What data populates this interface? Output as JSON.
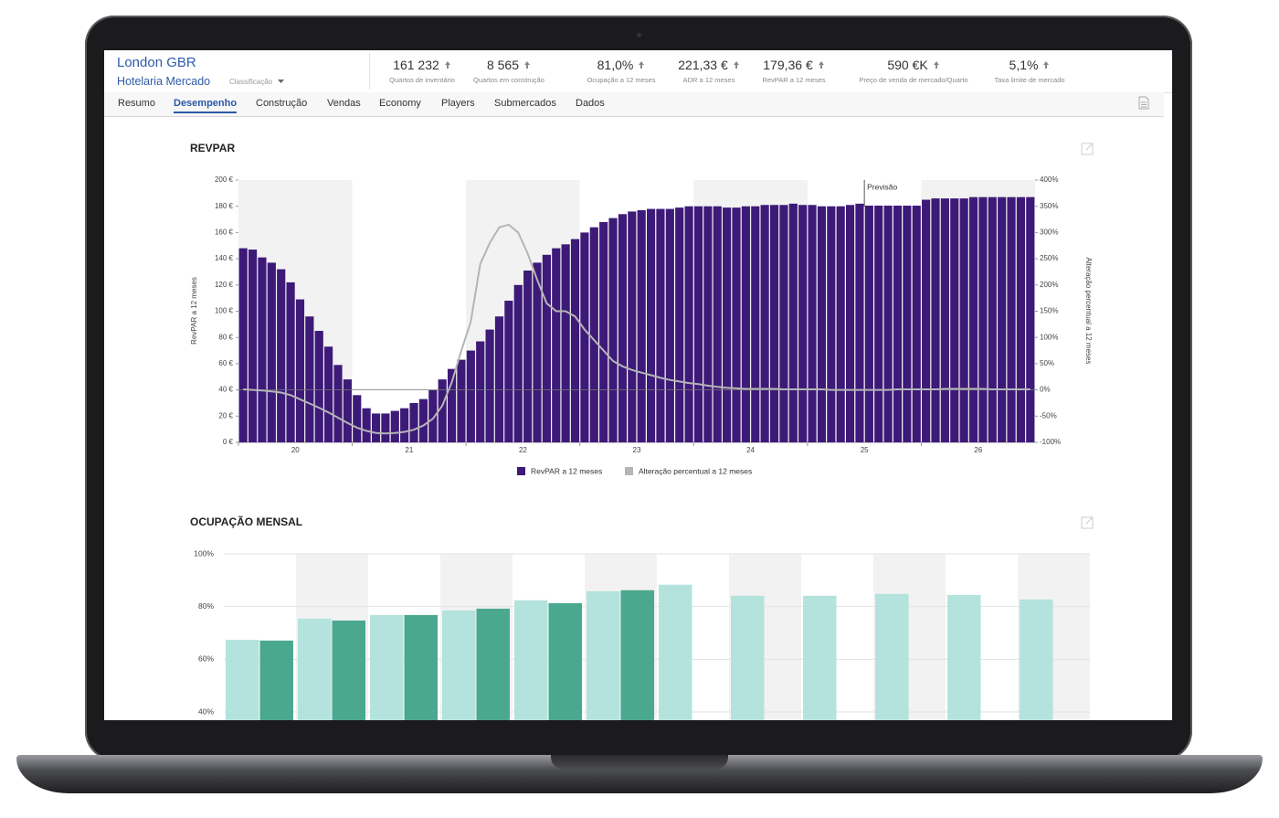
{
  "header": {
    "city": "London GBR",
    "segment": "Hotelaria Mercado",
    "dropdown": "Classificação"
  },
  "metrics": [
    {
      "value": "161 232",
      "label": "Quartos de inventário"
    },
    {
      "value": "8 565",
      "label": "Quartos em construção"
    },
    {
      "value": "81,0%",
      "label": "Ocupação a 12 meses"
    },
    {
      "value": "221,33 €",
      "label": "ADR a 12 meses"
    },
    {
      "value": "179,36 €",
      "label": "RevPAR a 12 meses"
    },
    {
      "value": "590 €K",
      "label": "Preço de venda de mercado/Quarto"
    },
    {
      "value": "5,1%",
      "label": "Taxa limite de mercado"
    }
  ],
  "tabs": [
    "Resumo",
    "Desempenho",
    "Construção",
    "Vendas",
    "Economy",
    "Players",
    "Submercados",
    "Dados"
  ],
  "active_tab": 1,
  "chart_data": [
    {
      "type": "bar",
      "title": "REVPAR",
      "categories": [
        "20",
        null,
        null,
        null,
        null,
        null,
        null,
        null,
        null,
        null,
        null,
        null,
        "21",
        null,
        null,
        null,
        null,
        null,
        null,
        null,
        null,
        null,
        null,
        null,
        "22",
        null,
        null,
        null,
        null,
        null,
        null,
        null,
        null,
        null,
        null,
        null,
        "23",
        null,
        null,
        null,
        null,
        null,
        null,
        null,
        null,
        null,
        null,
        null,
        "24",
        null,
        null,
        null,
        null,
        null,
        null,
        null,
        null,
        null,
        null,
        null,
        "25",
        null,
        null,
        null,
        null,
        null,
        null,
        null,
        null,
        null,
        null,
        null,
        "26",
        null,
        null,
        null,
        null,
        null,
        null,
        null,
        null,
        null,
        null,
        null
      ],
      "series": [
        {
          "name": "RevPAR a 12 meses",
          "type": "bar",
          "color": "#3d1a78",
          "values": [
            148,
            147,
            141,
            137,
            132,
            122,
            109,
            96,
            85,
            73,
            59,
            48,
            36,
            26,
            22,
            22,
            24,
            26,
            30,
            33,
            40,
            48,
            56,
            63,
            70,
            77,
            86,
            96,
            108,
            120,
            131,
            137,
            143,
            148,
            151,
            155,
            160,
            164,
            168,
            171,
            174,
            176,
            177,
            178,
            178,
            178,
            179,
            180,
            180,
            180,
            180,
            179,
            179,
            180,
            180,
            181,
            181,
            181,
            182,
            181,
            181,
            180,
            180,
            180,
            181,
            182,
            182,
            183,
            184,
            184,
            185,
            185,
            185,
            186,
            186,
            186,
            186,
            187,
            187,
            187,
            187,
            187,
            187,
            187
          ]
        },
        {
          "name": "Alteração percentual a 12 meses",
          "type": "line",
          "color": "#b5b5b5",
          "axis": "y2",
          "values": [
            1,
            0,
            -1,
            -3,
            -5,
            -10,
            -18,
            -26,
            -34,
            -43,
            -53,
            -63,
            -72,
            -78,
            -82,
            -83,
            -82,
            -80,
            -76,
            -68,
            -55,
            -30,
            15,
            75,
            130,
            240,
            280,
            310,
            315,
            300,
            260,
            210,
            165,
            150,
            150,
            140,
            115,
            95,
            75,
            55,
            45,
            38,
            33,
            28,
            23,
            19,
            16,
            13,
            11,
            8,
            6,
            4,
            3,
            2,
            2,
            2,
            2,
            1,
            1,
            1,
            1,
            1,
            0,
            0,
            0,
            0,
            0,
            0,
            0,
            1,
            1,
            1,
            1,
            1,
            2,
            2,
            2,
            2,
            2,
            1,
            1,
            1,
            1,
            1
          ]
        }
      ],
      "ylabel": "RevPAR a 12 meses",
      "y2label": "Alteração percentual a 12 meses",
      "ylim": [
        0,
        200
      ],
      "yticks": [
        {
          "value": 0,
          "label": "0 €"
        },
        {
          "value": 20,
          "label": "20 €"
        },
        {
          "value": 40,
          "label": "40 €"
        },
        {
          "value": 60,
          "label": "60 €"
        },
        {
          "value": 80,
          "label": "80 €"
        },
        {
          "value": 100,
          "label": "100 €"
        },
        {
          "value": 120,
          "label": "120 €"
        },
        {
          "value": 140,
          "label": "140 €"
        },
        {
          "value": 160,
          "label": "160 €"
        },
        {
          "value": 180,
          "label": "180 €"
        },
        {
          "value": 200,
          "label": "200 €"
        }
      ],
      "y2lim": [
        -100,
        400
      ],
      "y2ticks": [
        {
          "value": -100,
          "label": "-100%"
        },
        {
          "value": -50,
          "label": "-50%"
        },
        {
          "value": 0,
          "label": "0%"
        },
        {
          "value": 50,
          "label": "50%"
        },
        {
          "value": 100,
          "label": "100%"
        },
        {
          "value": 150,
          "label": "150%"
        },
        {
          "value": 200,
          "label": "200%"
        },
        {
          "value": 250,
          "label": "250%"
        },
        {
          "value": 300,
          "label": "300%"
        },
        {
          "value": 350,
          "label": "350%"
        },
        {
          "value": 400,
          "label": "400%"
        }
      ],
      "annotations": [
        {
          "text": "Previsão",
          "category_index": 66
        }
      ],
      "legend": "bottom"
    },
    {
      "type": "bar",
      "title": "OCUPAÇÃO MENSAL",
      "categories": [
        null,
        null,
        null,
        null,
        null,
        null,
        null,
        null,
        null,
        null,
        null,
        null
      ],
      "series": [
        {
          "color": "#b3e3dc",
          "values": [
            67.4,
            75.4,
            76.8,
            78.5,
            82.4,
            85.8,
            88.3,
            84.1,
            84.1,
            84.8,
            84.4,
            82.7
          ]
        },
        {
          "color": "#4aa88e",
          "values": [
            67.1,
            74.7,
            76.8,
            79.2,
            81.3,
            86.2,
            null,
            null,
            null,
            null,
            null,
            null
          ]
        }
      ],
      "ylim": [
        40,
        100
      ],
      "yticks": [
        {
          "value": 40,
          "label": "40%"
        },
        {
          "value": 60,
          "label": "60%"
        },
        {
          "value": 80,
          "label": "80%"
        },
        {
          "value": 100,
          "label": "100%"
        }
      ],
      "grid": true
    }
  ]
}
